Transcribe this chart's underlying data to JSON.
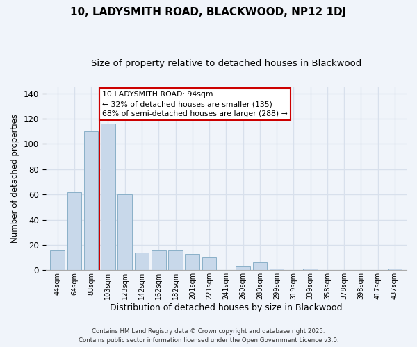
{
  "title": "10, LADYSMITH ROAD, BLACKWOOD, NP12 1DJ",
  "subtitle": "Size of property relative to detached houses in Blackwood",
  "xlabel": "Distribution of detached houses by size in Blackwood",
  "ylabel": "Number of detached properties",
  "bar_labels": [
    "44sqm",
    "64sqm",
    "83sqm",
    "103sqm",
    "123sqm",
    "142sqm",
    "162sqm",
    "182sqm",
    "201sqm",
    "221sqm",
    "241sqm",
    "260sqm",
    "280sqm",
    "299sqm",
    "319sqm",
    "339sqm",
    "358sqm",
    "378sqm",
    "398sqm",
    "417sqm",
    "437sqm"
  ],
  "bar_values": [
    16,
    62,
    110,
    116,
    60,
    14,
    16,
    16,
    13,
    10,
    0,
    3,
    6,
    1,
    0,
    1,
    0,
    0,
    0,
    0,
    1
  ],
  "bar_color": "#c8d8ea",
  "bar_edge_color": "#8ab0c8",
  "vline_x": 2.5,
  "vline_color": "#cc0000",
  "annotation_text": "10 LADYSMITH ROAD: 94sqm\n← 32% of detached houses are smaller (135)\n68% of semi-detached houses are larger (288) →",
  "annotation_box_color": "#ffffff",
  "annotation_box_edge": "#cc0000",
  "ylim": [
    0,
    145
  ],
  "footer_line1": "Contains HM Land Registry data © Crown copyright and database right 2025.",
  "footer_line2": "Contains public sector information licensed under the Open Government Licence v3.0.",
  "background_color": "#f0f4fa",
  "grid_color": "#d8e0ec",
  "title_fontsize": 11,
  "subtitle_fontsize": 9.5
}
